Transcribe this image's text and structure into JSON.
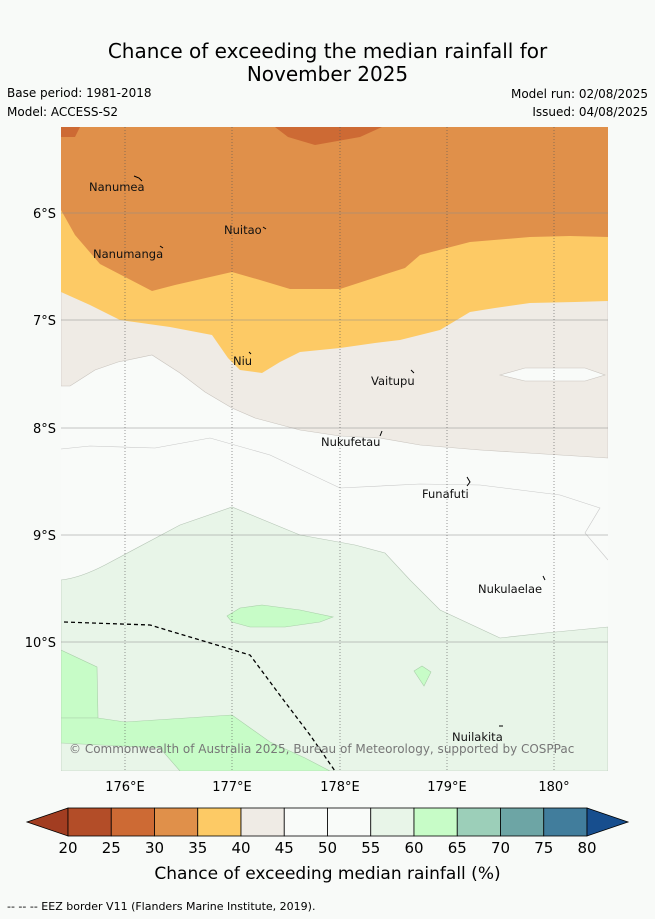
{
  "title_line1": "Chance of exceeding the median rainfall for",
  "title_line2": "November 2025",
  "left_meta": {
    "base_period": "Base period: 1981-2018",
    "model": "Model: ACCESS-S2"
  },
  "right_meta": {
    "model_run": "Model run: 02/08/2025",
    "issued": "Issued: 04/08/2025"
  },
  "map": {
    "copyright": "© Commonwealth of Australia 2025, Bureau of Meteorology, supported by COSPPac",
    "lat_labels": [
      "6°S",
      "7°S",
      "8°S",
      "9°S",
      "10°S"
    ],
    "lon_labels": [
      "176°E",
      "177°E",
      "178°E",
      "179°E",
      "180°"
    ],
    "places": [
      {
        "name": "Nanumea"
      },
      {
        "name": "Nuitao"
      },
      {
        "name": "Nanumanga"
      },
      {
        "name": "Niu"
      },
      {
        "name": "Vaitupu"
      },
      {
        "name": "Nukufetau"
      },
      {
        "name": "Funafuti"
      },
      {
        "name": "Nukulaelae"
      },
      {
        "name": "Nuilakita"
      }
    ]
  },
  "colorbar": {
    "title": "Chance of exceeding median rainfall (%)",
    "ticks": [
      "20",
      "25",
      "30",
      "35",
      "40",
      "45",
      "50",
      "55",
      "60",
      "65",
      "70",
      "75",
      "80"
    ],
    "colors": [
      "#b34d28",
      "#cd6a34",
      "#e0904a",
      "#fdca65",
      "#efebe5",
      "#f9fbf9",
      "#f9fbf9",
      "#e8f5e8",
      "#c7fcc7",
      "#9ccfb9",
      "#6da5a5",
      "#417d9c"
    ],
    "under_color": "#a23d21",
    "over_color": "#174e8e"
  },
  "footnote": "-- -- -- EEZ border V11 (Flanders Marine Institute, 2019)."
}
